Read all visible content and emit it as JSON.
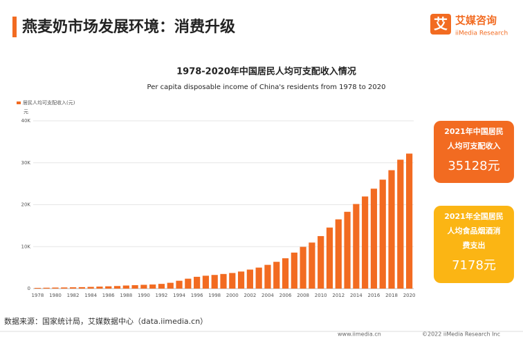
{
  "header": {
    "title": "燕麦奶市场发展环境：消费升级",
    "logo": "艾媒咨询",
    "logo_sub": "iiMedia Research"
  },
  "chart_data": {
    "type": "bar",
    "title": "1978-2020年中国居民人均可支配收入情况",
    "subtitle": "Per capita disposable income of  China's residents from 1978 to 2020",
    "y_unit": "元",
    "series": [
      {
        "name": "居民人均可支配收入(元)",
        "color": "#f26b21",
        "values": [
          171,
          208,
          247,
          270,
          310,
          349,
          411,
          479,
          545,
          617,
          736,
          817,
          904,
          976,
          1125,
          1385,
          1870,
          2363,
          2814,
          3070,
          3254,
          3485,
          3721,
          4070,
          4532,
          5007,
          5661,
          6385,
          7229,
          8584,
          9957,
          10977,
          12520,
          14551,
          16510,
          18311,
          20167,
          21966,
          23821,
          25974,
          28228,
          30733,
          32189
        ]
      }
    ],
    "categories": [
      "1978",
      null,
      "1980",
      null,
      "1982",
      null,
      "1984",
      null,
      "1986",
      null,
      "1988",
      null,
      "1990",
      null,
      "1992",
      null,
      "1994",
      null,
      "1996",
      null,
      "1998",
      null,
      "2000",
      null,
      "2002",
      null,
      "2004",
      null,
      "2006",
      null,
      "2008",
      null,
      "2010",
      null,
      "2012",
      null,
      "2014",
      null,
      "2016",
      null,
      "2018",
      null,
      "2020"
    ],
    "ylim": [
      0,
      40000
    ],
    "yticks": [
      0,
      {
        "value": 10000,
        "label": "10K"
      },
      {
        "value": 20000,
        "label": "20K"
      },
      {
        "value": 30000,
        "label": "30K"
      },
      {
        "value": 40000,
        "label": "40K"
      }
    ],
    "grid": true,
    "legend": "top-left"
  },
  "callouts": [
    {
      "lines": [
        "2021年中国居民",
        "人均可支配收入"
      ],
      "value": "35128元",
      "color": "#f26b21"
    },
    {
      "lines": [
        "2021年全国居民",
        "人均食品烟酒消",
        "费支出"
      ],
      "value": "7178元",
      "color": "#fbb514"
    }
  ],
  "footer": {
    "source": "数据来源：国家统计局，艾媒数据中心（data.iimedia.cn）",
    "url": "www.iimedia.cn",
    "copyright": "©2022  iiMedia Research  Inc"
  }
}
